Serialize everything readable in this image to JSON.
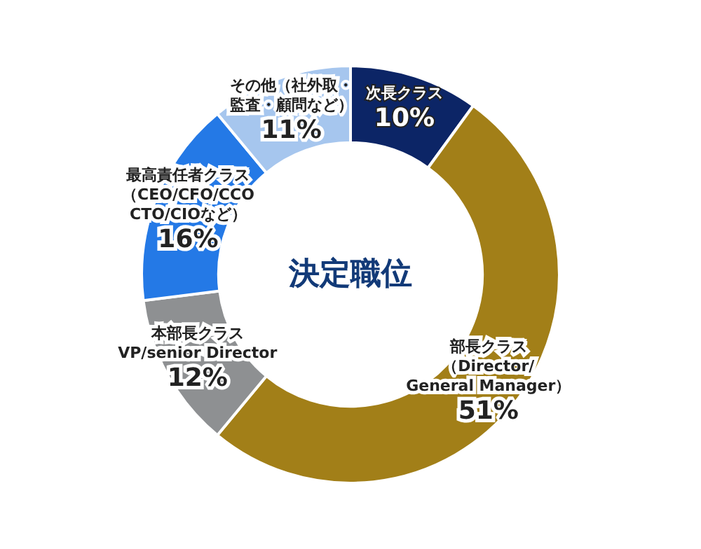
{
  "chart_data": {
    "type": "donut",
    "title": "決定職位",
    "categories": [
      "次長クラス",
      "部長クラス（Director/General Manager）",
      "本部長クラスVP/senior Director",
      "最高責任者クラス（CEO/CFO/CCO CTO/CIOなど）",
      "その他（社外取・監査・顧問など）"
    ],
    "values": [
      10,
      51,
      12,
      16,
      11
    ],
    "value_labels": [
      "10%",
      "51%",
      "12%",
      "16%",
      "11%"
    ],
    "colors": [
      "#0c2566",
      "#a27f18",
      "#8e9092",
      "#2479e6",
      "#a6c6ee"
    ],
    "legend": false
  }
}
